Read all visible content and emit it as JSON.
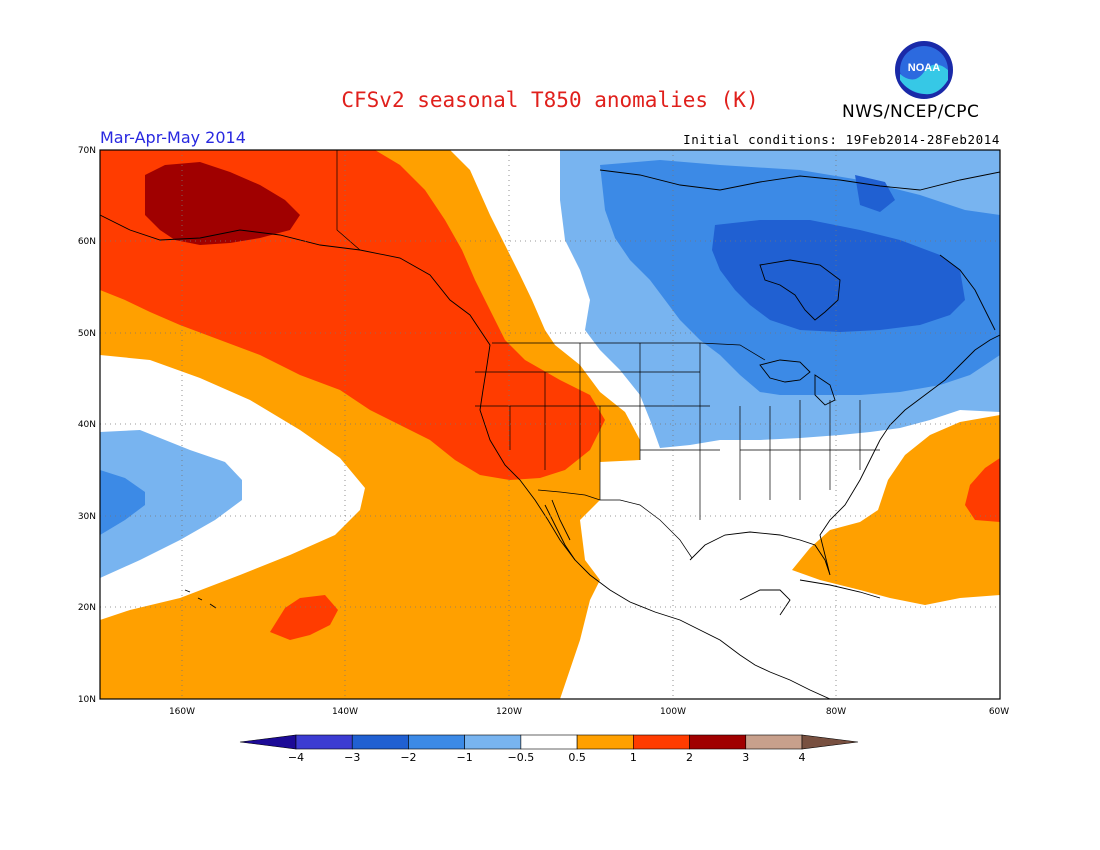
{
  "header": {
    "title": "CFSv2 seasonal T850 anomalies (K)",
    "agency": "NWS/NCEP/CPC",
    "logo_text": "NOAA",
    "season": "Mar-Apr-May 2014",
    "initial_conditions": "Initial conditions: 19Feb2014-28Feb2014"
  },
  "map": {
    "lon_range": [
      -170,
      -60
    ],
    "lat_range": [
      10,
      70
    ],
    "lat_labels": [
      "70N",
      "60N",
      "50N",
      "40N",
      "30N",
      "20N",
      "10N"
    ],
    "lon_labels": [
      "160W",
      "140W",
      "120W",
      "100W",
      "80W",
      "60W"
    ]
  },
  "colorbar": {
    "levels": [
      "-4",
      "-3",
      "-2",
      "-1",
      "-0.5",
      "0.5",
      "1",
      "2",
      "3",
      "4"
    ],
    "colors": [
      "#1c0a96",
      "#3c3cd2",
      "#2060d2",
      "#3c8ae6",
      "#78b4f0",
      "#ffffff",
      "#ffa000",
      "#ff3c00",
      "#a00000",
      "#c8a08c",
      "#785040"
    ]
  }
}
